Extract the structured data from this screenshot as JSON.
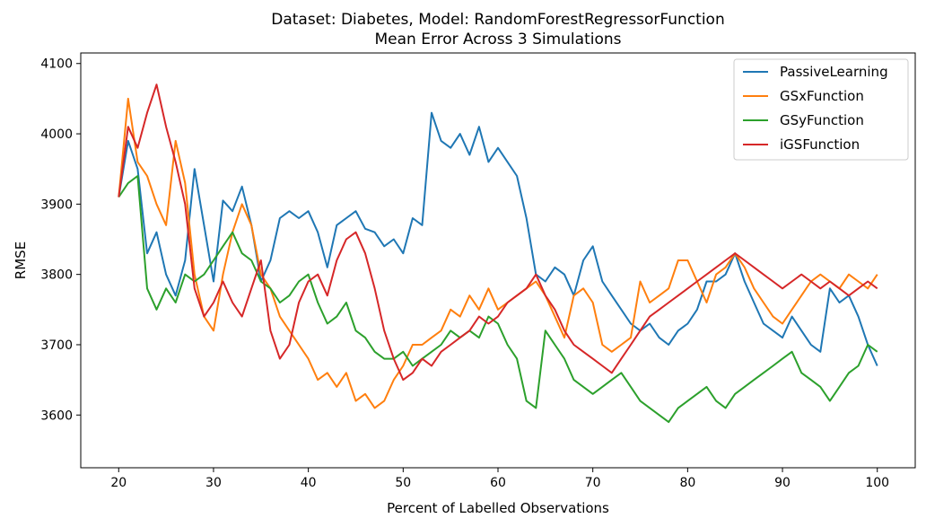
{
  "chart_data": {
    "type": "line",
    "title": "Dataset: Diabetes, Model: RandomForestRegressorFunction",
    "subtitle": "Mean Error Across 3 Simulations",
    "xlabel": "Percent of Labelled Observations",
    "ylabel": "RMSE",
    "xlim": [
      16,
      104
    ],
    "ylim": [
      3525,
      4115
    ],
    "xticks": [
      20,
      30,
      40,
      50,
      60,
      70,
      80,
      90,
      100
    ],
    "yticks": [
      3600,
      3700,
      3800,
      3900,
      4000,
      4100
    ],
    "grid": false,
    "legend_position": "top-right",
    "series": [
      {
        "name": "PassiveLearning",
        "color": "#1f77b4",
        "x": [
          20,
          21,
          22,
          23,
          24,
          25,
          26,
          27,
          28,
          29,
          30,
          31,
          32,
          33,
          34,
          35,
          36,
          37,
          38,
          39,
          40,
          41,
          42,
          43,
          44,
          45,
          46,
          47,
          48,
          49,
          50,
          51,
          52,
          53,
          54,
          55,
          56,
          57,
          58,
          59,
          60,
          61,
          62,
          63,
          64,
          65,
          66,
          67,
          68,
          69,
          70,
          71,
          72,
          73,
          74,
          75,
          76,
          77,
          78,
          79,
          80,
          81,
          82,
          83,
          84,
          85,
          86,
          87,
          88,
          89,
          90,
          91,
          92,
          93,
          94,
          95,
          96,
          97,
          98,
          99,
          100
        ],
        "values": [
          3910,
          3990,
          3950,
          3830,
          3860,
          3800,
          3770,
          3820,
          3950,
          3870,
          3790,
          3905,
          3890,
          3925,
          3870,
          3790,
          3820,
          3880,
          3890,
          3880,
          3890,
          3860,
          3810,
          3870,
          3880,
          3890,
          3865,
          3860,
          3840,
          3850,
          3830,
          3880,
          3870,
          4030,
          3990,
          3980,
          4000,
          3970,
          4010,
          3960,
          3980,
          3960,
          3940,
          3880,
          3800,
          3790,
          3810,
          3800,
          3770,
          3820,
          3840,
          3790,
          3770,
          3750,
          3730,
          3720,
          3730,
          3710,
          3700,
          3720,
          3730,
          3750,
          3790,
          3790,
          3800,
          3830,
          3790,
          3760,
          3730,
          3720,
          3710,
          3740,
          3720,
          3700,
          3690,
          3780,
          3760,
          3770,
          3740,
          3700,
          3670
        ]
      },
      {
        "name": "GSxFunction",
        "color": "#ff7f0e",
        "x": [
          20,
          21,
          22,
          23,
          24,
          25,
          26,
          27,
          28,
          29,
          30,
          31,
          32,
          33,
          34,
          35,
          36,
          37,
          38,
          39,
          40,
          41,
          42,
          43,
          44,
          45,
          46,
          47,
          48,
          49,
          50,
          51,
          52,
          53,
          54,
          55,
          56,
          57,
          58,
          59,
          60,
          61,
          62,
          63,
          64,
          65,
          66,
          67,
          68,
          69,
          70,
          71,
          72,
          73,
          74,
          75,
          76,
          77,
          78,
          79,
          80,
          81,
          82,
          83,
          84,
          85,
          86,
          87,
          88,
          89,
          90,
          91,
          92,
          93,
          94,
          95,
          96,
          97,
          98,
          99,
          100
        ],
        "values": [
          3910,
          4050,
          3960,
          3940,
          3900,
          3870,
          3990,
          3930,
          3800,
          3740,
          3720,
          3800,
          3860,
          3900,
          3870,
          3800,
          3780,
          3740,
          3720,
          3700,
          3680,
          3650,
          3660,
          3640,
          3660,
          3620,
          3630,
          3610,
          3620,
          3650,
          3670,
          3700,
          3700,
          3710,
          3720,
          3750,
          3740,
          3770,
          3750,
          3780,
          3750,
          3760,
          3770,
          3780,
          3790,
          3770,
          3740,
          3710,
          3770,
          3780,
          3760,
          3700,
          3690,
          3700,
          3710,
          3790,
          3760,
          3770,
          3780,
          3820,
          3820,
          3790,
          3760,
          3800,
          3810,
          3830,
          3810,
          3780,
          3760,
          3740,
          3730,
          3750,
          3770,
          3790,
          3800,
          3790,
          3780,
          3800,
          3790,
          3780,
          3800
        ]
      },
      {
        "name": "GSyFunction",
        "color": "#2ca02c",
        "x": [
          20,
          21,
          22,
          23,
          24,
          25,
          26,
          27,
          28,
          29,
          30,
          31,
          32,
          33,
          34,
          35,
          36,
          37,
          38,
          39,
          40,
          41,
          42,
          43,
          44,
          45,
          46,
          47,
          48,
          49,
          50,
          51,
          52,
          53,
          54,
          55,
          56,
          57,
          58,
          59,
          60,
          61,
          62,
          63,
          64,
          65,
          66,
          67,
          68,
          69,
          70,
          71,
          72,
          73,
          74,
          75,
          76,
          77,
          78,
          79,
          80,
          81,
          82,
          83,
          84,
          85,
          86,
          87,
          88,
          89,
          90,
          91,
          92,
          93,
          94,
          95,
          96,
          97,
          98,
          99,
          100
        ],
        "values": [
          3910,
          3930,
          3940,
          3780,
          3750,
          3780,
          3760,
          3800,
          3790,
          3800,
          3820,
          3840,
          3860,
          3830,
          3820,
          3790,
          3780,
          3760,
          3770,
          3790,
          3800,
          3760,
          3730,
          3740,
          3760,
          3720,
          3710,
          3690,
          3680,
          3680,
          3690,
          3670,
          3680,
          3690,
          3700,
          3720,
          3710,
          3720,
          3710,
          3740,
          3730,
          3700,
          3680,
          3620,
          3610,
          3720,
          3700,
          3680,
          3650,
          3640,
          3630,
          3640,
          3650,
          3660,
          3640,
          3620,
          3610,
          3600,
          3590,
          3610,
          3620,
          3630,
          3640,
          3620,
          3610,
          3630,
          3640,
          3650,
          3660,
          3670,
          3680,
          3690,
          3660,
          3650,
          3640,
          3620,
          3640,
          3660,
          3670,
          3700,
          3690
        ]
      },
      {
        "name": "iGSFunction",
        "color": "#d62728",
        "x": [
          20,
          21,
          22,
          23,
          24,
          25,
          26,
          27,
          28,
          29,
          30,
          31,
          32,
          33,
          34,
          35,
          36,
          37,
          38,
          39,
          40,
          41,
          42,
          43,
          44,
          45,
          46,
          47,
          48,
          49,
          50,
          51,
          52,
          53,
          54,
          55,
          56,
          57,
          58,
          59,
          60,
          61,
          62,
          63,
          64,
          65,
          66,
          67,
          68,
          69,
          70,
          71,
          72,
          73,
          74,
          75,
          76,
          77,
          78,
          79,
          80,
          81,
          82,
          83,
          84,
          85,
          86,
          87,
          88,
          89,
          90,
          91,
          92,
          93,
          94,
          95,
          96,
          97,
          98,
          99,
          100
        ],
        "values": [
          3910,
          4010,
          3980,
          4030,
          4070,
          4010,
          3960,
          3900,
          3780,
          3740,
          3760,
          3790,
          3760,
          3740,
          3780,
          3820,
          3720,
          3680,
          3700,
          3760,
          3790,
          3800,
          3770,
          3820,
          3850,
          3860,
          3830,
          3780,
          3720,
          3680,
          3650,
          3660,
          3680,
          3670,
          3690,
          3700,
          3710,
          3720,
          3740,
          3730,
          3740,
          3760,
          3770,
          3780,
          3800,
          3770,
          3750,
          3720,
          3700,
          3690,
          3680,
          3670,
          3660,
          3680,
          3700,
          3720,
          3740,
          3750,
          3760,
          3770,
          3780,
          3790,
          3800,
          3810,
          3820,
          3830,
          3820,
          3810,
          3800,
          3790,
          3780,
          3790,
          3800,
          3790,
          3780,
          3790,
          3780,
          3770,
          3780,
          3790,
          3780
        ]
      }
    ]
  }
}
